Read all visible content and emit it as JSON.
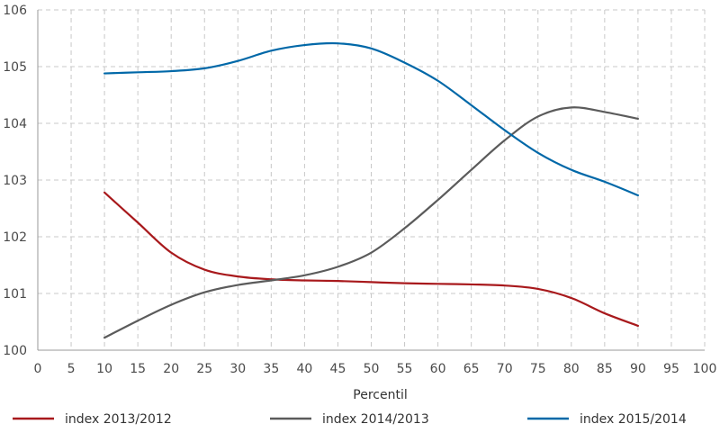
{
  "chart_data": {
    "type": "line",
    "title": "",
    "xlabel": "Percentil",
    "ylabel": "",
    "xlim": [
      0,
      100
    ],
    "ylim": [
      100,
      106
    ],
    "x_ticks": [
      0,
      5,
      10,
      15,
      20,
      25,
      30,
      35,
      40,
      45,
      50,
      55,
      60,
      65,
      70,
      75,
      80,
      85,
      90,
      95,
      100
    ],
    "y_ticks": [
      100,
      101,
      102,
      103,
      104,
      105,
      106
    ],
    "grid": true,
    "legend_position": "bottom",
    "x": [
      10,
      15,
      20,
      25,
      30,
      35,
      40,
      45,
      50,
      55,
      60,
      65,
      70,
      75,
      80,
      85,
      90
    ],
    "series": [
      {
        "name": "index 2013/2012",
        "color": "#a8191c",
        "values": [
          102.78,
          102.25,
          101.72,
          101.42,
          101.3,
          101.25,
          101.23,
          101.22,
          101.2,
          101.18,
          101.17,
          101.16,
          101.14,
          101.08,
          100.92,
          100.65,
          100.43
        ]
      },
      {
        "name": "index 2014/2013",
        "color": "#5b5b5b",
        "values": [
          100.22,
          100.52,
          100.8,
          101.02,
          101.15,
          101.23,
          101.32,
          101.47,
          101.72,
          102.15,
          102.65,
          103.18,
          103.7,
          104.12,
          104.28,
          104.2,
          104.08
        ]
      },
      {
        "name": "index 2015/2014",
        "color": "#0068a8",
        "values": [
          104.88,
          104.9,
          104.92,
          104.97,
          105.1,
          105.28,
          105.38,
          105.41,
          105.32,
          105.07,
          104.75,
          104.32,
          103.88,
          103.48,
          103.18,
          102.97,
          102.73
        ]
      }
    ]
  }
}
